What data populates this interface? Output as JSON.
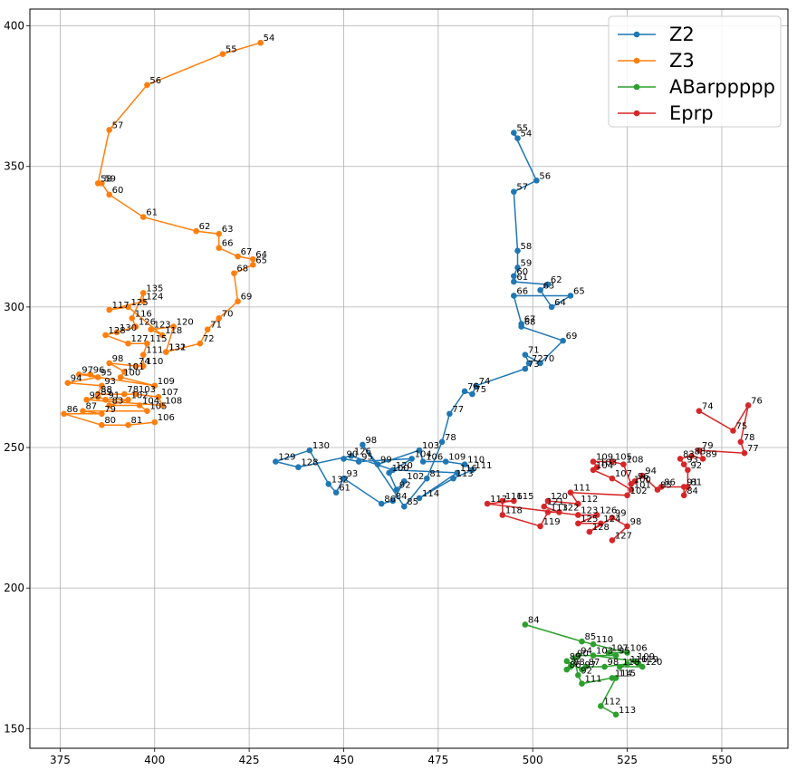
{
  "chart_data": {
    "type": "line",
    "title": "",
    "xlabel": "",
    "ylabel": "",
    "xlim": [
      367,
      567.5
    ],
    "ylim": [
      143,
      406
    ],
    "xticks": [
      375,
      400,
      425,
      450,
      475,
      500,
      525,
      550
    ],
    "yticks": [
      150,
      200,
      250,
      300,
      350,
      400
    ],
    "grid": true,
    "legend_position": "top-right",
    "series": [
      {
        "name": "Z2",
        "color": "#1f77b4",
        "points": [
          {
            "label": "54",
            "x": 496,
            "y": 360
          },
          {
            "label": "55",
            "x": 495,
            "y": 362
          },
          {
            "label": "56",
            "x": 501,
            "y": 345
          },
          {
            "label": "57",
            "x": 495,
            "y": 341
          },
          {
            "label": "58",
            "x": 496,
            "y": 320
          },
          {
            "label": "59",
            "x": 496,
            "y": 314
          },
          {
            "label": "60",
            "x": 495,
            "y": 311
          },
          {
            "label": "61",
            "x": 495,
            "y": 309
          },
          {
            "label": "62",
            "x": 504,
            "y": 308
          },
          {
            "label": "63",
            "x": 502,
            "y": 306
          },
          {
            "label": "64",
            "x": 505,
            "y": 300
          },
          {
            "label": "65",
            "x": 510,
            "y": 304
          },
          {
            "label": "66",
            "x": 495,
            "y": 304
          },
          {
            "label": "67",
            "x": 497,
            "y": 294
          },
          {
            "label": "68",
            "x": 497,
            "y": 293
          },
          {
            "label": "69",
            "x": 508,
            "y": 288
          },
          {
            "label": "70",
            "x": 502,
            "y": 280
          },
          {
            "label": "71",
            "x": 498,
            "y": 283
          },
          {
            "label": "72",
            "x": 499,
            "y": 280
          },
          {
            "label": "73",
            "x": 498,
            "y": 278
          },
          {
            "label": "74",
            "x": 485,
            "y": 272
          },
          {
            "label": "75",
            "x": 484,
            "y": 269
          },
          {
            "label": "76",
            "x": 482,
            "y": 270
          },
          {
            "label": "77",
            "x": 478,
            "y": 262
          },
          {
            "label": "78",
            "x": 476,
            "y": 252
          },
          {
            "label": "81",
            "x": 472,
            "y": 239
          },
          {
            "label": "85",
            "x": 466,
            "y": 229
          },
          {
            "label": "98",
            "x": 455,
            "y": 251
          },
          {
            "label": "99",
            "x": 459,
            "y": 244
          },
          {
            "label": "103",
            "x": 470,
            "y": 249
          },
          {
            "label": "106",
            "x": 471,
            "y": 245
          },
          {
            "label": "109",
            "x": 477,
            "y": 245
          },
          {
            "label": "110",
            "x": 482,
            "y": 244
          },
          {
            "label": "111",
            "x": 484,
            "y": 242
          },
          {
            "label": "113",
            "x": 479,
            "y": 239
          },
          {
            "label": "114",
            "x": 470,
            "y": 232
          },
          {
            "label": "116",
            "x": 480,
            "y": 241
          },
          {
            "label": "120",
            "x": 463,
            "y": 242
          },
          {
            "label": "126",
            "x": 452,
            "y": 247
          },
          {
            "label": "128",
            "x": 438,
            "y": 243
          },
          {
            "label": "129",
            "x": 432,
            "y": 245
          },
          {
            "label": "130",
            "x": 441,
            "y": 249
          },
          {
            "label": "132",
            "x": 446,
            "y": 237
          },
          {
            "label": "61",
            "x": 448,
            "y": 234
          },
          {
            "label": "93",
            "x": 450,
            "y": 239
          },
          {
            "label": "86",
            "x": 460,
            "y": 230
          },
          {
            "label": "84",
            "x": 463,
            "y": 231
          },
          {
            "label": "102",
            "x": 466,
            "y": 238
          },
          {
            "label": "92",
            "x": 464,
            "y": 235
          },
          {
            "label": "100",
            "x": 462,
            "y": 241
          },
          {
            "label": "104",
            "x": 468,
            "y": 246
          },
          {
            "label": "95",
            "x": 454,
            "y": 245
          },
          {
            "label": "90",
            "x": 450,
            "y": 246
          }
        ]
      },
      {
        "name": "Z3",
        "color": "#ff7f0e",
        "points": [
          {
            "label": "54",
            "x": 428,
            "y": 394
          },
          {
            "label": "55",
            "x": 418,
            "y": 390
          },
          {
            "label": "56",
            "x": 398,
            "y": 379
          },
          {
            "label": "57",
            "x": 388,
            "y": 363
          },
          {
            "label": "58",
            "x": 385,
            "y": 344
          },
          {
            "label": "59",
            "x": 386,
            "y": 344
          },
          {
            "label": "60",
            "x": 388,
            "y": 340
          },
          {
            "label": "61",
            "x": 397,
            "y": 332
          },
          {
            "label": "62",
            "x": 411,
            "y": 327
          },
          {
            "label": "63",
            "x": 417,
            "y": 326
          },
          {
            "label": "66",
            "x": 417,
            "y": 321
          },
          {
            "label": "67",
            "x": 422,
            "y": 318
          },
          {
            "label": "64",
            "x": 426,
            "y": 317
          },
          {
            "label": "65",
            "x": 426,
            "y": 315
          },
          {
            "label": "68",
            "x": 421,
            "y": 312
          },
          {
            "label": "69",
            "x": 422,
            "y": 302
          },
          {
            "label": "70",
            "x": 417,
            "y": 296
          },
          {
            "label": "71",
            "x": 414,
            "y": 292
          },
          {
            "label": "72",
            "x": 412,
            "y": 287
          },
          {
            "label": "131",
            "x": 403,
            "y": 284
          },
          {
            "label": "132",
            "x": 403,
            "y": 284
          },
          {
            "label": "120",
            "x": 405,
            "y": 293
          },
          {
            "label": "123",
            "x": 399,
            "y": 292
          },
          {
            "label": "118",
            "x": 402,
            "y": 290
          },
          {
            "label": "125",
            "x": 393,
            "y": 300
          },
          {
            "label": "117",
            "x": 388,
            "y": 299
          },
          {
            "label": "124",
            "x": 397,
            "y": 302
          },
          {
            "label": "135",
            "x": 397,
            "y": 305
          },
          {
            "label": "116",
            "x": 394,
            "y": 296
          },
          {
            "label": "126",
            "x": 395,
            "y": 293
          },
          {
            "label": "130",
            "x": 390,
            "y": 291
          },
          {
            "label": "128",
            "x": 387,
            "y": 290
          },
          {
            "label": "127",
            "x": 393,
            "y": 287
          },
          {
            "label": "115",
            "x": 398,
            "y": 287
          },
          {
            "label": "111",
            "x": 397,
            "y": 283
          },
          {
            "label": "110",
            "x": 397,
            "y": 279
          },
          {
            "label": "74",
            "x": 395,
            "y": 279
          },
          {
            "label": "98",
            "x": 388,
            "y": 280
          },
          {
            "label": "101",
            "x": 392,
            "y": 277
          },
          {
            "label": "100",
            "x": 391,
            "y": 275
          },
          {
            "label": "109",
            "x": 400,
            "y": 272
          },
          {
            "label": "97",
            "x": 380,
            "y": 276
          },
          {
            "label": "96",
            "x": 383,
            "y": 276
          },
          {
            "label": "95",
            "x": 385,
            "y": 275
          },
          {
            "label": "94",
            "x": 377,
            "y": 273
          },
          {
            "label": "93",
            "x": 386,
            "y": 272
          },
          {
            "label": "88",
            "x": 385,
            "y": 269
          },
          {
            "label": "78",
            "x": 392,
            "y": 269
          },
          {
            "label": "103",
            "x": 395,
            "y": 269
          },
          {
            "label": "107",
            "x": 401,
            "y": 268
          },
          {
            "label": "108",
            "x": 402,
            "y": 265
          },
          {
            "label": "92",
            "x": 382,
            "y": 267
          },
          {
            "label": "89",
            "x": 385,
            "y": 268
          },
          {
            "label": "91",
            "x": 387,
            "y": 267
          },
          {
            "label": "102",
            "x": 393,
            "y": 267
          },
          {
            "label": "83",
            "x": 388,
            "y": 265
          },
          {
            "label": "104",
            "x": 396,
            "y": 265
          },
          {
            "label": "105",
            "x": 398,
            "y": 263
          },
          {
            "label": "87",
            "x": 381,
            "y": 263
          },
          {
            "label": "79",
            "x": 386,
            "y": 262
          },
          {
            "label": "86",
            "x": 376,
            "y": 262
          },
          {
            "label": "80",
            "x": 386,
            "y": 258
          },
          {
            "label": "81",
            "x": 393,
            "y": 258
          },
          {
            "label": "106",
            "x": 400,
            "y": 259
          }
        ]
      },
      {
        "name": "ABarppppp",
        "color": "#2ca02c",
        "points": [
          {
            "label": "84",
            "x": 498,
            "y": 187
          },
          {
            "label": "85",
            "x": 513,
            "y": 181
          },
          {
            "label": "110",
            "x": 516,
            "y": 180
          },
          {
            "label": "106",
            "x": 525,
            "y": 177
          },
          {
            "label": "107",
            "x": 520,
            "y": 177
          },
          {
            "label": "95",
            "x": 522,
            "y": 176
          },
          {
            "label": "94",
            "x": 512,
            "y": 176
          },
          {
            "label": "103",
            "x": 516,
            "y": 176
          },
          {
            "label": "109",
            "x": 527,
            "y": 174
          },
          {
            "label": "119",
            "x": 528,
            "y": 173
          },
          {
            "label": "120",
            "x": 529,
            "y": 172
          },
          {
            "label": "118",
            "x": 523,
            "y": 172
          },
          {
            "label": "116",
            "x": 525,
            "y": 173
          },
          {
            "label": "98",
            "x": 519,
            "y": 172
          },
          {
            "label": "87",
            "x": 514,
            "y": 172
          },
          {
            "label": "97",
            "x": 513,
            "y": 171
          },
          {
            "label": "89",
            "x": 509,
            "y": 174
          },
          {
            "label": "88",
            "x": 510,
            "y": 172
          },
          {
            "label": "86",
            "x": 509,
            "y": 171
          },
          {
            "label": "90",
            "x": 511,
            "y": 175
          },
          {
            "label": "92",
            "x": 512,
            "y": 169
          },
          {
            "label": "111",
            "x": 513,
            "y": 166
          },
          {
            "label": "114",
            "x": 521,
            "y": 168
          },
          {
            "label": "115",
            "x": 522,
            "y": 168
          },
          {
            "label": "112",
            "x": 518,
            "y": 158
          },
          {
            "label": "113",
            "x": 522,
            "y": 155
          }
        ]
      },
      {
        "name": "Eprp",
        "color": "#d62728",
        "points": [
          {
            "label": "74",
            "x": 544,
            "y": 263
          },
          {
            "label": "75",
            "x": 553,
            "y": 256
          },
          {
            "label": "76",
            "x": 557,
            "y": 265
          },
          {
            "label": "78",
            "x": 555,
            "y": 252
          },
          {
            "label": "77",
            "x": 556,
            "y": 248
          },
          {
            "label": "79",
            "x": 544,
            "y": 249
          },
          {
            "label": "89",
            "x": 545,
            "y": 246
          },
          {
            "label": "88",
            "x": 542,
            "y": 247
          },
          {
            "label": "83",
            "x": 539,
            "y": 246
          },
          {
            "label": "93",
            "x": 540,
            "y": 244
          },
          {
            "label": "92",
            "x": 541,
            "y": 242
          },
          {
            "label": "81",
            "x": 541,
            "y": 236
          },
          {
            "label": "84",
            "x": 540,
            "y": 233
          },
          {
            "label": "91",
            "x": 540,
            "y": 236
          },
          {
            "label": "86",
            "x": 534,
            "y": 236
          },
          {
            "label": "85",
            "x": 533,
            "y": 235
          },
          {
            "label": "94",
            "x": 529,
            "y": 240
          },
          {
            "label": "96",
            "x": 527,
            "y": 238
          },
          {
            "label": "100",
            "x": 526,
            "y": 237
          },
          {
            "label": "108",
            "x": 524,
            "y": 244
          },
          {
            "label": "105",
            "x": 521,
            "y": 245
          },
          {
            "label": "109",
            "x": 516,
            "y": 245
          },
          {
            "label": "103",
            "x": 517,
            "y": 243
          },
          {
            "label": "104",
            "x": 516,
            "y": 242
          },
          {
            "label": "107",
            "x": 521,
            "y": 239
          },
          {
            "label": "101",
            "x": 526,
            "y": 235
          },
          {
            "label": "102",
            "x": 525,
            "y": 233
          },
          {
            "label": "111",
            "x": 510,
            "y": 234
          },
          {
            "label": "112",
            "x": 512,
            "y": 230
          },
          {
            "label": "120",
            "x": 504,
            "y": 231
          },
          {
            "label": "121",
            "x": 503,
            "y": 229
          },
          {
            "label": "122",
            "x": 507,
            "y": 227
          },
          {
            "label": "113",
            "x": 504,
            "y": 227
          },
          {
            "label": "119",
            "x": 502,
            "y": 222
          },
          {
            "label": "118",
            "x": 492,
            "y": 226
          },
          {
            "label": "116",
            "x": 492,
            "y": 231
          },
          {
            "label": "115",
            "x": 495,
            "y": 231
          },
          {
            "label": "117",
            "x": 488,
            "y": 230
          },
          {
            "label": "123",
            "x": 512,
            "y": 226
          },
          {
            "label": "126",
            "x": 517,
            "y": 226
          },
          {
            "label": "125",
            "x": 512,
            "y": 223
          },
          {
            "label": "124",
            "x": 518,
            "y": 223
          },
          {
            "label": "128",
            "x": 515,
            "y": 220
          },
          {
            "label": "99",
            "x": 521,
            "y": 225
          },
          {
            "label": "98",
            "x": 525,
            "y": 222
          },
          {
            "label": "127",
            "x": 521,
            "y": 217
          }
        ]
      }
    ]
  }
}
